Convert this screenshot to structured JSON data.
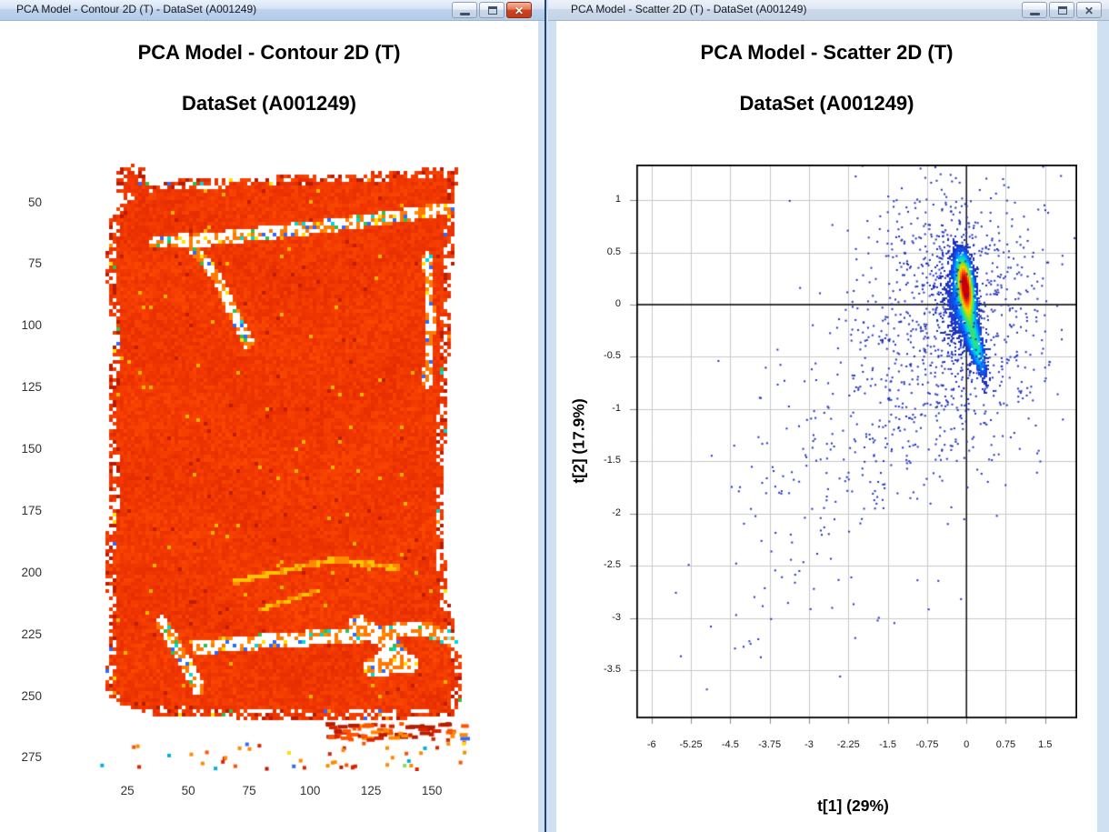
{
  "theme": {
    "titlebar_active": "#bed3ec",
    "titlebar_inactive": "#ccd9ea",
    "window_border": "#cfe0f2",
    "divider_line": "#26436f",
    "close_button_red": "#ce4424",
    "scatter_point_navy": "#1c2ebc",
    "bag_red": "#ee3300",
    "gridline_gray": "#c9c9c9"
  },
  "windows": {
    "left": {
      "title": "PCA Model - Contour 2D (T) - DataSet (A001249)",
      "active": true,
      "controls": [
        {
          "name": "minimize"
        },
        {
          "name": "maximize"
        },
        {
          "name": "close"
        }
      ]
    },
    "right": {
      "title": "PCA Model - Scatter 2D (T) - DataSet (A001249)",
      "active": false,
      "controls": [
        {
          "name": "minimize"
        },
        {
          "name": "maximize"
        },
        {
          "name": "close"
        }
      ]
    }
  },
  "chart_data": [
    {
      "type": "heatmap",
      "title": "PCA Model - Contour 2D (T)",
      "subtitle": "DataSet (A001249)",
      "x_ticks": [
        25,
        50,
        75,
        100,
        125,
        150
      ],
      "y_ticks": [
        50,
        75,
        100,
        125,
        150,
        175,
        200,
        225,
        250,
        275
      ],
      "x_range": [
        10,
        166
      ],
      "y_range": [
        31,
        280
      ],
      "y_axis_inverted": true,
      "grid": false,
      "colormap": "jet",
      "description": "Pixelated chemical-image of a sealed snack bag; body is uniform high-score red/orange, with white crease gaps and cyan/yellow/blue/green speckles along fold lines and edges, plus red debris specks below the bag.",
      "body_value_range": [
        0.85,
        0.95
      ],
      "seed": 13,
      "base_colors": [
        "#d92400",
        "#f03600",
        "#ff5200"
      ],
      "speckle_colors": [
        "#ffffff",
        "#ffffff",
        "#ffe000",
        "#00d8d8",
        "#2b6bff",
        "#30c050",
        "#ff9000",
        "#ffffff"
      ],
      "cyan_speckles": [
        "#00d8d8",
        "#30c878",
        "#9fe8e0",
        "#ffe000",
        "#ffffff"
      ],
      "outline": [
        [
          38,
          44
        ],
        [
          28,
          38
        ],
        [
          30,
          12
        ],
        [
          58,
          8
        ],
        [
          64,
          34
        ],
        [
          98,
          26
        ],
        [
          300,
          18
        ],
        [
          393,
          12
        ],
        [
          404,
          8
        ],
        [
          402,
          38
        ],
        [
          398,
          120
        ],
        [
          394,
          220
        ],
        [
          390,
          320
        ],
        [
          388,
          420
        ],
        [
          394,
          490
        ],
        [
          406,
          548
        ],
        [
          410,
          572
        ],
        [
          406,
          600
        ],
        [
          398,
          616
        ],
        [
          300,
          620
        ],
        [
          160,
          618
        ],
        [
          68,
          614
        ],
        [
          32,
          602
        ],
        [
          16,
          590
        ],
        [
          20,
          520
        ],
        [
          16,
          440
        ],
        [
          22,
          360
        ],
        [
          18,
          280
        ],
        [
          24,
          200
        ],
        [
          16,
          120
        ],
        [
          22,
          70
        ]
      ],
      "creases": [
        {
          "pts": [
            [
              93,
              95
            ],
            [
              158,
              88
            ],
            [
              248,
              78
            ],
            [
              338,
              66
            ],
            [
              393,
              57
            ]
          ],
          "width": 7,
          "intensity": 0.9
        },
        {
          "pts": [
            [
              103,
              88
            ],
            [
              138,
              132
            ],
            [
              173,
              205
            ]
          ],
          "width": 6,
          "intensity": 0.8
        },
        {
          "pts": [
            [
              68,
              95
            ],
            [
              93,
              92
            ]
          ],
          "width": 5,
          "intensity": 0.6
        },
        {
          "pts": [
            [
              118,
              540
            ],
            [
              208,
              532
            ],
            [
              298,
              526
            ],
            [
              368,
              518
            ]
          ],
          "width": 8,
          "intensity": 0.85
        },
        {
          "pts": [
            [
              78,
              512
            ],
            [
              103,
              555
            ],
            [
              118,
              585
            ]
          ],
          "width": 7,
          "intensity": 0.7
        },
        {
          "pts": [
            [
              293,
              513
            ],
            [
              338,
              543
            ],
            [
              308,
              563
            ],
            [
              353,
              558
            ]
          ],
          "width": 9,
          "intensity": 0.8
        },
        {
          "pts": [
            [
              363,
              518
            ],
            [
              403,
              533
            ]
          ],
          "width": 8,
          "intensity": 0.7,
          "cyan": true
        },
        {
          "pts": [
            [
              158,
              468
            ],
            [
              268,
              443
            ],
            [
              338,
              453
            ]
          ],
          "width": 3,
          "intensity": 0.4,
          "style": "yellow"
        },
        {
          "pts": [
            [
              188,
              498
            ],
            [
              248,
              478
            ]
          ],
          "width": 3,
          "intensity": 0.3,
          "style": "yellow"
        },
        {
          "pts": [
            [
              370,
              110
            ],
            [
              374,
              180
            ],
            [
              370,
              250
            ]
          ],
          "width": 5,
          "intensity": 0.75
        }
      ],
      "debris": {
        "strip": [
          258,
          622,
          410,
          640
        ],
        "strip_count": 70,
        "scatter_region": [
          8,
          642,
          410,
          674
        ],
        "scatter_count": 50,
        "colors_main": [
          "#d92400",
          "#b81c00",
          "#ff5200",
          "#ff8a00"
        ],
        "colors_rare": [
          "#00b0e0",
          "#ffe000",
          "#2b6bff",
          "#80e060"
        ]
      }
    },
    {
      "type": "scatter",
      "title": "PCA Model - Scatter 2D (T)",
      "subtitle": "DataSet (A001249)",
      "xlabel": "t[1] (29%)",
      "ylabel": "t[2] (17.9%)",
      "x_ticks": [
        -6,
        -5.25,
        -4.5,
        -3.75,
        -3,
        -2.25,
        -1.5,
        -0.75,
        0,
        0.75,
        1.5
      ],
      "y_ticks": [
        1,
        0.5,
        0,
        -0.5,
        -1,
        -1.5,
        -2,
        -2.5,
        -3,
        -3.5
      ],
      "xlim": [
        -6.29,
        2.11
      ],
      "ylim": [
        1.34,
        -3.96
      ],
      "grid": true,
      "zero_lines": true,
      "legend": "none",
      "point_color": "#1c2ebc",
      "density_colormap": [
        "#2233cc",
        "#0066ff",
        "#00aaff",
        "#00e0d0",
        "#40e060",
        "#b8e000",
        "#ffd000",
        "#ff8000",
        "#ff3000",
        "#c80000"
      ],
      "density_clusters": [
        {
          "cx": -0.02,
          "cy": 0.18,
          "rx": 0.4,
          "ry": 0.2,
          "rot_deg": -72,
          "amp": 1.0
        },
        {
          "cx": 0.18,
          "cy": -0.38,
          "rx": 0.5,
          "ry": 0.17,
          "rot_deg": -61,
          "amp": 0.42
        },
        {
          "cx": -0.15,
          "cy": 0.0,
          "rx": 0.75,
          "ry": 0.5,
          "rot_deg": -65,
          "amp": 0.18
        }
      ],
      "outlier_groups": [
        {
          "kind": "trend",
          "n": 520,
          "slope": 0.52,
          "spread": 0.85,
          "x_min": -5.9,
          "x_pow": 0.38
        },
        {
          "kind": "halo",
          "n": 620,
          "cx": -0.1,
          "cy": -0.1,
          "sx": 0.85,
          "sy": 0.75
        },
        {
          "kind": "top",
          "n": 70,
          "cx": -0.4,
          "sx": 1.0,
          "y_base": 0.45,
          "y_spread": 0.28
        },
        {
          "kind": "right",
          "n": 40,
          "x0": 0.2,
          "x_span": 1.35,
          "cy": -0.1,
          "sy": 0.45
        }
      ],
      "seed": 42
    }
  ]
}
